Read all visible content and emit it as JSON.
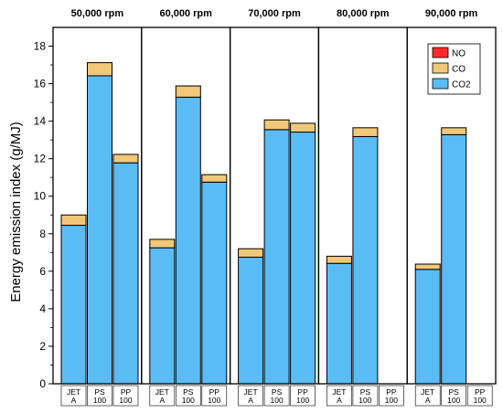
{
  "chart_data": {
    "type": "bar",
    "stacked": true,
    "ylabel": "Energy emission index (g/MJ)",
    "ylim": [
      0,
      19
    ],
    "yticks": [
      0,
      2,
      4,
      6,
      8,
      10,
      12,
      14,
      16,
      18
    ],
    "grid": false,
    "legend": {
      "placement": "top-right",
      "order": [
        "NO",
        "CO",
        "CO2"
      ]
    },
    "colors": {
      "CO2": "#5bbcf5",
      "CO": "#f0c878",
      "NO": "#ff2b2b"
    },
    "categories": [
      {
        "line1": "JET",
        "line2": "A"
      },
      {
        "line1": "PS",
        "line2": "100"
      },
      {
        "line1": "PP",
        "line2": "100"
      }
    ],
    "panels": [
      {
        "title": "50,000 rpm",
        "series": {
          "CO2": [
            8.45,
            16.42,
            11.78
          ],
          "CO": [
            0.55,
            0.7,
            0.45
          ],
          "NO": [
            0,
            0,
            0
          ]
        }
      },
      {
        "title": "60,000 rpm",
        "series": {
          "CO2": [
            7.25,
            15.28,
            10.75
          ],
          "CO": [
            0.45,
            0.6,
            0.4
          ],
          "NO": [
            0,
            0,
            0
          ]
        }
      },
      {
        "title": "70,000 rpm",
        "series": {
          "CO2": [
            6.75,
            13.55,
            13.42
          ],
          "CO": [
            0.45,
            0.52,
            0.47
          ],
          "NO": [
            0,
            0,
            0
          ]
        }
      },
      {
        "title": "80,000 rpm",
        "series": {
          "CO2": [
            6.42,
            13.18,
            null
          ],
          "CO": [
            0.38,
            0.47,
            null
          ],
          "NO": [
            0,
            0,
            null
          ]
        }
      },
      {
        "title": "90,000 rpm",
        "series": {
          "CO2": [
            6.1,
            13.28,
            null
          ],
          "CO": [
            0.28,
            0.37,
            null
          ],
          "NO": [
            0,
            0,
            null
          ]
        }
      }
    ]
  }
}
